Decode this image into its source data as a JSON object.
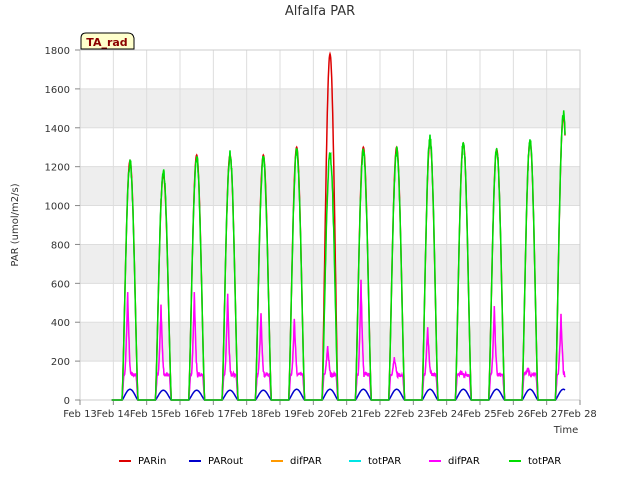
{
  "chart_data": {
    "type": "line",
    "title": "Alfalfa PAR",
    "xlabel": "Time",
    "ylabel": "PAR (umol/m2/s)",
    "badge": "TA_rad",
    "xlim": [
      13,
      28
    ],
    "ylim": [
      0,
      1800
    ],
    "yticks": [
      0,
      200,
      400,
      600,
      800,
      1000,
      1200,
      1400,
      1600,
      1800
    ],
    "xticks": [
      13,
      14,
      15,
      16,
      17,
      18,
      19,
      20,
      21,
      22,
      23,
      24,
      25,
      26,
      27,
      28
    ],
    "xtick_labels": [
      "Feb 13",
      "Feb 14",
      "Feb 15",
      "Feb 16",
      "Feb 17",
      "Feb 18",
      "Feb 19",
      "Feb 20",
      "Feb 21",
      "Feb 22",
      "Feb 23",
      "Feb 24",
      "Feb 25",
      "Feb 26",
      "Feb 27",
      "Feb 28"
    ],
    "daily_peaks": {
      "days": [
        14,
        15,
        16,
        17,
        18,
        19,
        20,
        21,
        22,
        23,
        24,
        25,
        26,
        27
      ],
      "PARin": [
        1230,
        1160,
        1260,
        1260,
        1260,
        1300,
        1780,
        1300,
        1300,
        1330,
        1320,
        1290,
        1330,
        1460
      ],
      "PARout": [
        55,
        50,
        50,
        50,
        50,
        55,
        55,
        55,
        55,
        55,
        55,
        55,
        55,
        55
      ],
      "difPAR": [
        550,
        480,
        545,
        540,
        440,
        410,
        280,
        610,
        215,
        375,
        140,
        470,
        165,
        430
      ],
      "totPAR": [
        1220,
        1170,
        1250,
        1260,
        1240,
        1280,
        1260,
        1280,
        1280,
        1340,
        1320,
        1280,
        1330,
        1470
      ]
    },
    "series": [
      {
        "name": "PARin",
        "color": "#dd0000"
      },
      {
        "name": "PARout",
        "color": "#0000cc"
      },
      {
        "name": "difPAR",
        "color": "#ff9900"
      },
      {
        "name": "totPAR",
        "color": "#00e5e5"
      },
      {
        "name": "difPAR",
        "color": "#ff00ff"
      },
      {
        "name": "totPAR",
        "color": "#00dd00"
      }
    ],
    "legend_position": "bottom",
    "grid": true
  }
}
